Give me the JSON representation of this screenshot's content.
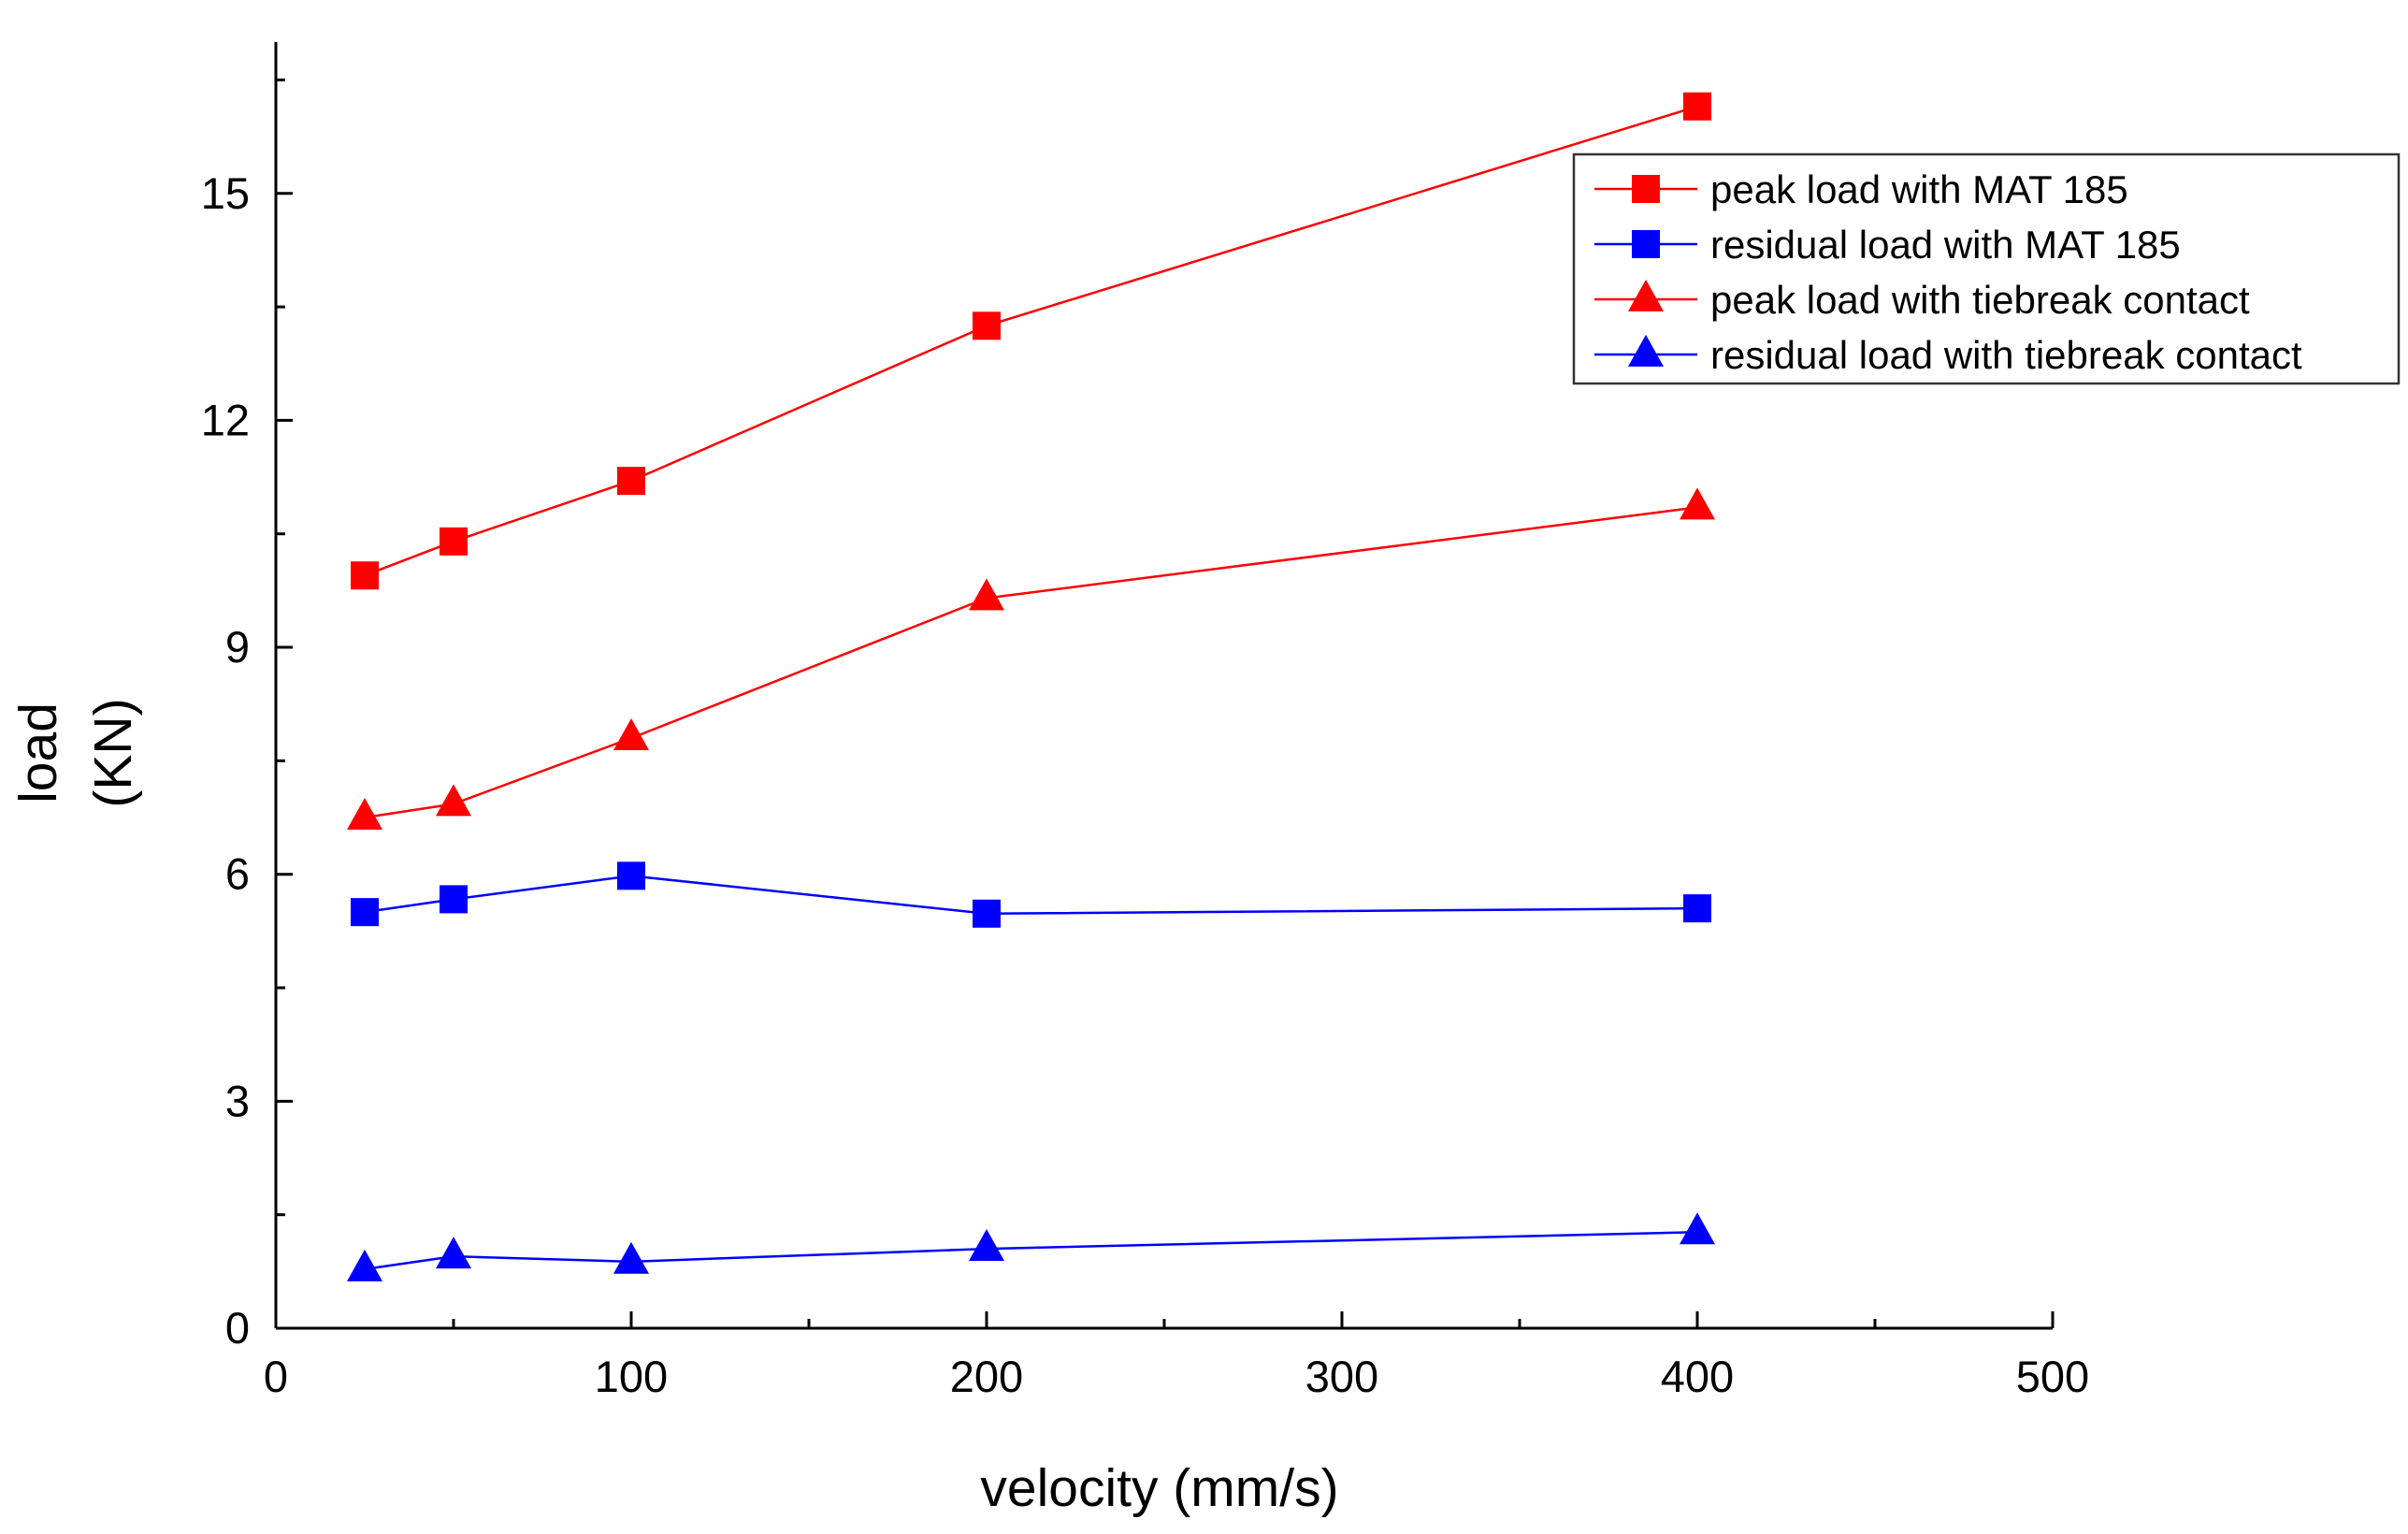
{
  "chart_data": {
    "type": "line",
    "title": "",
    "xlabel": "velocity (mm/s)",
    "ylabel_line1": "load",
    "ylabel_line2": "(KN)",
    "xlim": [
      0,
      500
    ],
    "ylim": [
      0,
      17
    ],
    "xticks": [
      0,
      100,
      200,
      300,
      400,
      500
    ],
    "xminor": [
      50,
      150,
      250,
      350,
      450
    ],
    "yticks": [
      0,
      3,
      6,
      9,
      12,
      15
    ],
    "yminor": [
      1.5,
      4.5,
      7.5,
      10.5,
      13.5,
      16.5
    ],
    "grid": false,
    "legend_position": "top-right",
    "series": [
      {
        "name": "peak load with MAT 185",
        "marker": "square",
        "color": "#ff0000",
        "x": [
          25,
          50,
          100,
          200,
          400
        ],
        "y": [
          9.95,
          10.4,
          11.2,
          13.25,
          16.15
        ]
      },
      {
        "name": "residual load with MAT 185",
        "marker": "square",
        "color": "#0000ff",
        "x": [
          25,
          50,
          100,
          200,
          400
        ],
        "y": [
          5.5,
          5.67,
          5.98,
          5.48,
          5.55
        ]
      },
      {
        "name": "peak load with tiebreak contact",
        "marker": "triangle",
        "color": "#ff0000",
        "x": [
          25,
          50,
          100,
          200,
          400
        ],
        "y": [
          6.75,
          6.93,
          7.8,
          9.65,
          10.85
        ]
      },
      {
        "name": "residual load with tiebreak contact",
        "marker": "triangle",
        "color": "#0000ff",
        "x": [
          25,
          50,
          100,
          200,
          400
        ],
        "y": [
          0.78,
          0.95,
          0.88,
          1.05,
          1.27
        ]
      }
    ]
  }
}
